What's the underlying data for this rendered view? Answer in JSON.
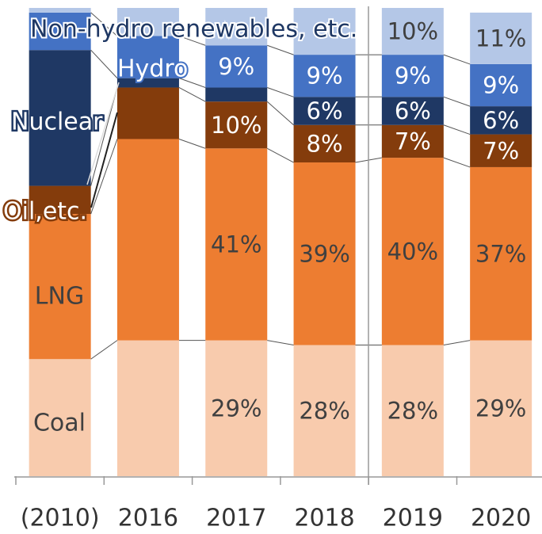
{
  "chart_data": {
    "type": "stacked_bar",
    "categories": [
      "(2010)",
      "2016",
      "2017",
      "2018",
      "2019",
      "2020"
    ],
    "ylim": [
      0,
      100
    ],
    "series": [
      {
        "name": "Coal",
        "color": "#f8cbad",
        "values": [
          25,
          29,
          29,
          28,
          28,
          29
        ],
        "value_labels": [
          null,
          null,
          "29%",
          "28%",
          "28%",
          "29%"
        ]
      },
      {
        "name": "LNG",
        "color": "#ed7d31",
        "values": [
          31,
          43,
          41,
          39,
          40,
          37
        ],
        "value_labels": [
          null,
          null,
          "41%",
          "39%",
          "40%",
          "37%"
        ]
      },
      {
        "name": "Oil,etc.",
        "color": "#843c0c",
        "values": [
          6,
          11,
          10,
          8,
          7,
          7
        ],
        "value_labels": [
          null,
          null,
          "10%",
          "8%",
          "7%",
          "7%"
        ]
      },
      {
        "name": "Nuclear",
        "color": "#1f3864",
        "values": [
          29,
          2,
          3,
          6,
          6,
          6
        ],
        "value_labels": [
          null,
          null,
          null,
          "6%",
          "6%",
          "6%"
        ]
      },
      {
        "name": "Hydro",
        "color": "#4472c4",
        "values": [
          8,
          9,
          9,
          9,
          9,
          9
        ],
        "value_labels": [
          null,
          null,
          "9%",
          "9%",
          "9%",
          "9%"
        ]
      },
      {
        "name": "Non-hydro renewables, etc.",
        "color": "#b4c7e7",
        "values": [
          1,
          6,
          8,
          10,
          10,
          11
        ],
        "value_labels": [
          null,
          null,
          null,
          null,
          "10%",
          "11%"
        ]
      }
    ]
  }
}
